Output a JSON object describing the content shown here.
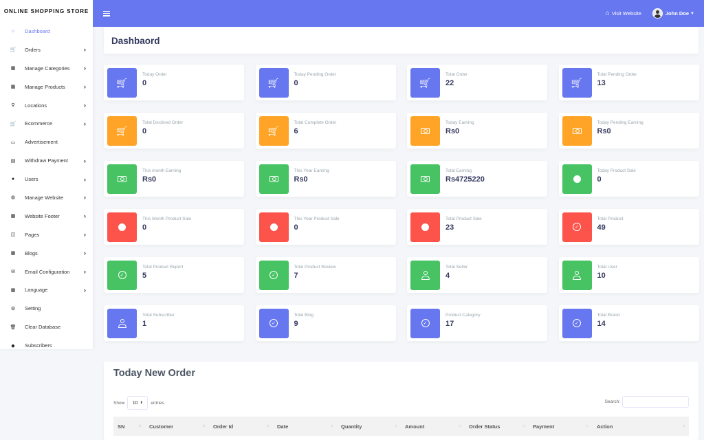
{
  "sidebar": {
    "brand": "ONLINE SHOPPING STORE",
    "items": [
      {
        "label": "Dashboard",
        "icon": "home-icon",
        "glyph": "⌂",
        "chevron": false,
        "active": true
      },
      {
        "label": "Orders",
        "icon": "cart-icon",
        "glyph": "🛒",
        "chevron": true,
        "active": false
      },
      {
        "label": "Manage Categories",
        "icon": "grid-icon",
        "glyph": "▦",
        "chevron": true,
        "active": false
      },
      {
        "label": "Manage Products",
        "icon": "grid-icon",
        "glyph": "▦",
        "chevron": true,
        "active": false
      },
      {
        "label": "Locations",
        "icon": "map-marker-icon",
        "glyph": "⚲",
        "chevron": true,
        "active": false
      },
      {
        "label": "Ecommerce",
        "icon": "cart-icon",
        "glyph": "🛒",
        "chevron": true,
        "active": false
      },
      {
        "label": "Advertisement",
        "icon": "ad-icon",
        "glyph": "▭",
        "chevron": false,
        "active": false
      },
      {
        "label": "Withdraw Payment",
        "icon": "money-icon",
        "glyph": "▤",
        "chevron": true,
        "active": false
      },
      {
        "label": "Users",
        "icon": "user-icon",
        "glyph": "●",
        "chevron": true,
        "active": false
      },
      {
        "label": "Manage Website",
        "icon": "globe-icon",
        "glyph": "◍",
        "chevron": true,
        "active": false
      },
      {
        "label": "Website Footer",
        "icon": "grid-icon",
        "glyph": "▦",
        "chevron": true,
        "active": false
      },
      {
        "label": "Pages",
        "icon": "columns-icon",
        "glyph": "◫",
        "chevron": true,
        "active": false
      },
      {
        "label": "Blogs",
        "icon": "grid-icon",
        "glyph": "▦",
        "chevron": true,
        "active": false
      },
      {
        "label": "Email Configuration",
        "icon": "envelope-icon",
        "glyph": "✉",
        "chevron": true,
        "active": false
      },
      {
        "label": "Language",
        "icon": "grid-icon",
        "glyph": "▦",
        "chevron": true,
        "active": false
      },
      {
        "label": "Setting",
        "icon": "gear-icon",
        "glyph": "⚙",
        "chevron": false,
        "active": false
      },
      {
        "label": "Clear Database",
        "icon": "trash-icon",
        "glyph": "🗑",
        "chevron": false,
        "active": false
      },
      {
        "label": "Subscribers",
        "icon": "fire-icon",
        "glyph": "◆",
        "chevron": false,
        "active": false
      }
    ]
  },
  "topbar": {
    "visit_label": "Visit Website",
    "user_name": "John Doe"
  },
  "page": {
    "title": "Dashbaord"
  },
  "cards": [
    {
      "title": "Today Order",
      "value": "0",
      "color": "blue",
      "icon": "cart"
    },
    {
      "title": "Today Pending Order",
      "value": "0",
      "color": "blue",
      "icon": "cart"
    },
    {
      "title": "Total Order",
      "value": "22",
      "color": "blue",
      "icon": "cart"
    },
    {
      "title": "Total Pending Order",
      "value": "13",
      "color": "blue",
      "icon": "cart"
    },
    {
      "title": "Total Declined Order",
      "value": "0",
      "color": "orange",
      "icon": "cart"
    },
    {
      "title": "Total Complete Order",
      "value": "6",
      "color": "orange",
      "icon": "cart"
    },
    {
      "title": "Today Earning",
      "value": "Rs0",
      "color": "orange",
      "icon": "money"
    },
    {
      "title": "Today Pending Earning",
      "value": "Rs0",
      "color": "orange",
      "icon": "money"
    },
    {
      "title": "This month Earning",
      "value": "Rs0",
      "color": "green",
      "icon": "money"
    },
    {
      "title": "This Year Earning",
      "value": "Rs0",
      "color": "green",
      "icon": "money"
    },
    {
      "title": "Total Earning",
      "value": "Rs4725220",
      "color": "green",
      "icon": "money"
    },
    {
      "title": "Today Product Sale",
      "value": "0",
      "color": "green",
      "icon": "dot"
    },
    {
      "title": "This Month Product Sale",
      "value": "0",
      "color": "red",
      "icon": "dot"
    },
    {
      "title": "This Year Product Sale",
      "value": "0",
      "color": "red",
      "icon": "dot"
    },
    {
      "title": "Total Product Sale",
      "value": "23",
      "color": "red",
      "icon": "dot"
    },
    {
      "title": "Total Product",
      "value": "49",
      "color": "red",
      "icon": "check"
    },
    {
      "title": "Total Product Report",
      "value": "5",
      "color": "green",
      "icon": "check"
    },
    {
      "title": "Total Product Review",
      "value": "7",
      "color": "green",
      "icon": "check"
    },
    {
      "title": "Total Seller",
      "value": "4",
      "color": "green",
      "icon": "user"
    },
    {
      "title": "Total User",
      "value": "10",
      "color": "green",
      "icon": "user"
    },
    {
      "title": "Total Subscriber",
      "value": "1",
      "color": "blue",
      "icon": "user"
    },
    {
      "title": "Total Blog",
      "value": "9",
      "color": "blue",
      "icon": "check"
    },
    {
      "title": "Product Category",
      "value": "17",
      "color": "blue",
      "icon": "check"
    },
    {
      "title": "Total Brand",
      "value": "14",
      "color": "blue",
      "icon": "check"
    }
  ],
  "orders": {
    "title": "Today New Order",
    "show_label": "Show",
    "entries_value": "10",
    "entries_label": "entries",
    "search_label": "Search:",
    "columns": [
      "SN",
      "Customer",
      "Order Id",
      "Date",
      "Quantity",
      "Amount",
      "Order Status",
      "Payment",
      "Action"
    ]
  },
  "colors": {
    "primary": "#6777ef",
    "orange": "#ffa426",
    "green": "#47c363",
    "red": "#fc544b"
  }
}
